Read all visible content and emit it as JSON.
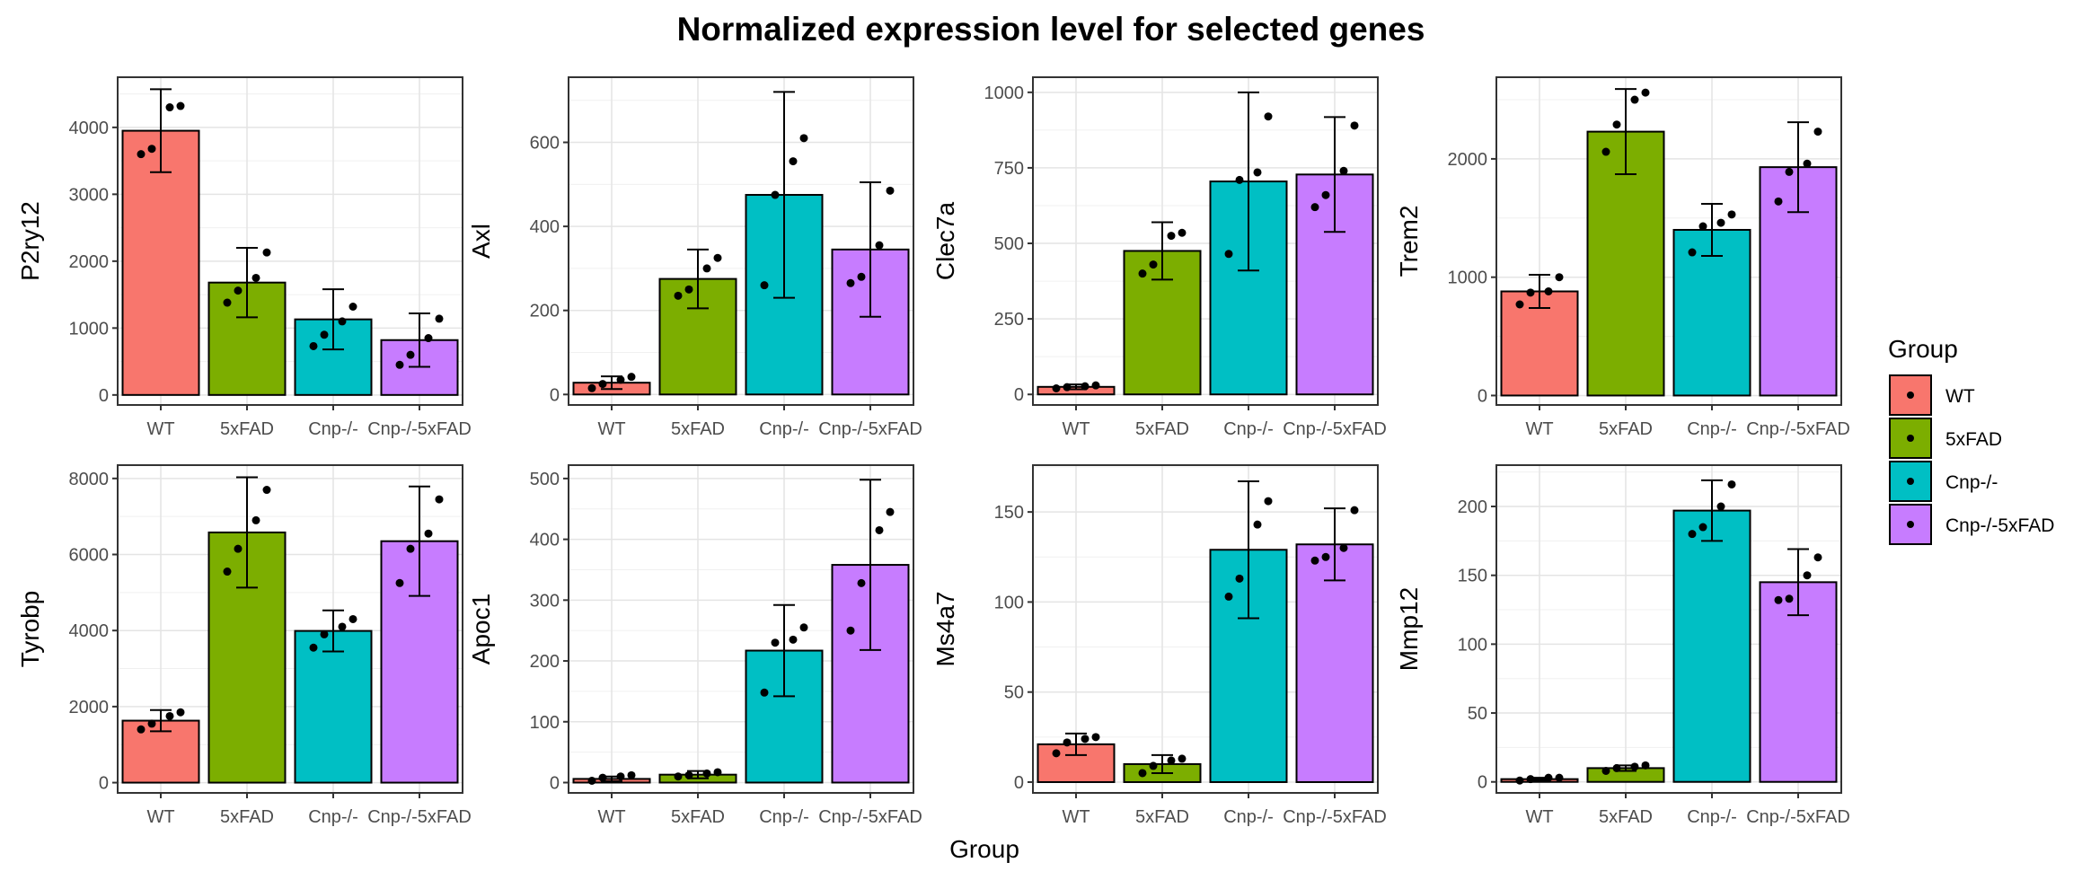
{
  "title": "Normalized expression level for selected genes",
  "xlabel": "Group",
  "legend": {
    "title": "Group",
    "placement": "right",
    "items": [
      {
        "label": "WT",
        "color": "#F8766D"
      },
      {
        "label": "5xFAD",
        "color": "#7CAE00"
      },
      {
        "label": "Cnp-/-",
        "color": "#00BFC4"
      },
      {
        "label": "Cnp-/-5xFAD",
        "color": "#C77CFF"
      }
    ]
  },
  "chart_data": [
    {
      "type": "bar",
      "ylabel": "P2ry12",
      "categories": [
        "WT",
        "5xFAD",
        "Cnp-/-",
        "Cnp-/-5xFAD"
      ],
      "ylim": [
        -150,
        4750
      ],
      "yticks": [
        0,
        1000,
        2000,
        3000,
        4000
      ],
      "values": [
        3950,
        1680,
        1130,
        820
      ],
      "errors": [
        620,
        520,
        450,
        400
      ],
      "points": [
        [
          3600,
          3680,
          4300,
          4320
        ],
        [
          1380,
          1560,
          1750,
          2130
        ],
        [
          730,
          900,
          1100,
          1320
        ],
        [
          450,
          600,
          850,
          1140
        ]
      ],
      "grid": true
    },
    {
      "type": "bar",
      "ylabel": "Axl",
      "categories": [
        "WT",
        "5xFAD",
        "Cnp-/-",
        "Cnp-/-5xFAD"
      ],
      "ylim": [
        -25,
        755
      ],
      "yticks": [
        0,
        200,
        400,
        600
      ],
      "values": [
        28,
        275,
        475,
        345
      ],
      "errors": [
        15,
        70,
        245,
        160
      ],
      "points": [
        [
          15,
          25,
          35,
          42
        ],
        [
          235,
          250,
          300,
          325
        ],
        [
          260,
          475,
          555,
          610
        ],
        [
          265,
          280,
          355,
          485
        ]
      ],
      "grid": true
    },
    {
      "type": "bar",
      "ylabel": "Clec7a",
      "categories": [
        "WT",
        "5xFAD",
        "Cnp-/-",
        "Cnp-/-5xFAD"
      ],
      "ylim": [
        -35,
        1050
      ],
      "yticks": [
        0,
        250,
        500,
        750,
        1000
      ],
      "values": [
        25,
        475,
        705,
        728
      ],
      "errors": [
        8,
        95,
        295,
        190
      ],
      "points": [
        [
          20,
          24,
          27,
          30
        ],
        [
          400,
          430,
          525,
          535
        ],
        [
          465,
          710,
          735,
          920
        ],
        [
          620,
          660,
          740,
          890
        ]
      ],
      "grid": true
    },
    {
      "type": "bar",
      "ylabel": "Trem2",
      "categories": [
        "WT",
        "5xFAD",
        "Cnp-/-",
        "Cnp-/-5xFAD"
      ],
      "ylim": [
        -80,
        2690
      ],
      "yticks": [
        0,
        1000,
        2000
      ],
      "values": [
        880,
        2230,
        1400,
        1930
      ],
      "errors": [
        140,
        360,
        220,
        380
      ],
      "points": [
        [
          770,
          870,
          880,
          1000
        ],
        [
          2060,
          2290,
          2500,
          2560
        ],
        [
          1210,
          1430,
          1460,
          1530
        ],
        [
          1640,
          1890,
          1960,
          2230
        ]
      ],
      "grid": true
    },
    {
      "type": "bar",
      "ylabel": "Tyrobp",
      "categories": [
        "WT",
        "5xFAD",
        "Cnp-/-",
        "Cnp-/-5xFAD"
      ],
      "ylim": [
        -270,
        8350
      ],
      "yticks": [
        0,
        2000,
        4000,
        6000,
        8000
      ],
      "values": [
        1630,
        6580,
        3990,
        6350
      ],
      "errors": [
        280,
        1450,
        540,
        1440
      ],
      "points": [
        [
          1400,
          1550,
          1750,
          1850
        ],
        [
          5550,
          6150,
          6900,
          7700
        ],
        [
          3550,
          3900,
          4100,
          4300
        ],
        [
          5250,
          6150,
          6550,
          7450
        ]
      ],
      "grid": true
    },
    {
      "type": "bar",
      "ylabel": "Apoc1",
      "categories": [
        "WT",
        "5xFAD",
        "Cnp-/-",
        "Cnp-/-5xFAD"
      ],
      "ylim": [
        -17,
        522
      ],
      "yticks": [
        0,
        100,
        200,
        300,
        400,
        500
      ],
      "values": [
        6,
        13,
        217,
        358
      ],
      "errors": [
        4,
        6,
        75,
        140
      ],
      "points": [
        [
          3,
          8,
          10,
          12
        ],
        [
          10,
          12,
          15,
          17
        ],
        [
          148,
          230,
          235,
          255
        ],
        [
          250,
          328,
          415,
          445
        ]
      ],
      "grid": true
    },
    {
      "type": "bar",
      "ylabel": "Ms4a7",
      "categories": [
        "WT",
        "5xFAD",
        "Cnp-/-",
        "Cnp-/-5xFAD"
      ],
      "ylim": [
        -6,
        176
      ],
      "yticks": [
        0,
        50,
        100,
        150
      ],
      "values": [
        21,
        10,
        129,
        132
      ],
      "errors": [
        6,
        5,
        38,
        20
      ],
      "points": [
        [
          16,
          22,
          24,
          25
        ],
        [
          5,
          9,
          12,
          13
        ],
        [
          103,
          113,
          143,
          156
        ],
        [
          123,
          125,
          130,
          151
        ]
      ],
      "grid": true
    },
    {
      "type": "bar",
      "ylabel": "Mmp12",
      "categories": [
        "WT",
        "5xFAD",
        "Cnp-/-",
        "Cnp-/-5xFAD"
      ],
      "ylim": [
        -8,
        230
      ],
      "yticks": [
        0,
        50,
        100,
        150,
        200
      ],
      "values": [
        2,
        10,
        197,
        145
      ],
      "errors": [
        1,
        2,
        22,
        24
      ],
      "points": [
        [
          1,
          2,
          3,
          3
        ],
        [
          8,
          10,
          11,
          12
        ],
        [
          180,
          185,
          200,
          216
        ],
        [
          132,
          133,
          150,
          163
        ]
      ],
      "grid": true
    }
  ]
}
